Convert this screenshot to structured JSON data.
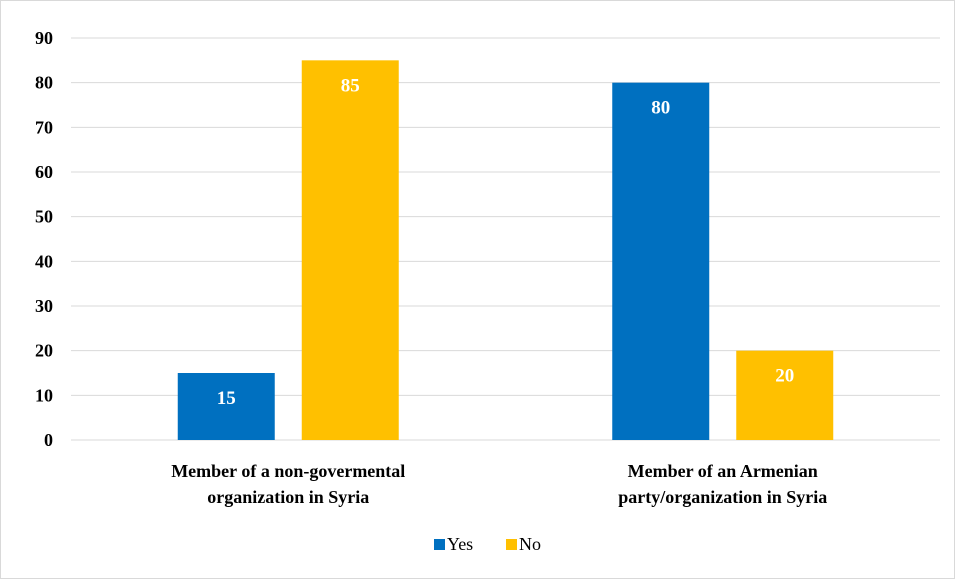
{
  "chart_data": {
    "type": "bar",
    "title": "",
    "xlabel": "",
    "ylabel": "",
    "categories": [
      [
        "Member of a non-govermental",
        "organization in Syria"
      ],
      [
        "Member of an Armenian",
        "party/organization in Syria"
      ]
    ],
    "series": [
      {
        "name": "Yes",
        "color": "#0070c0",
        "values": [
          15,
          80
        ]
      },
      {
        "name": "No",
        "color": "#ffc000",
        "values": [
          85,
          20
        ]
      }
    ],
    "ylim": [
      0,
      90
    ],
    "yticks": [
      0,
      10,
      20,
      30,
      40,
      50,
      60,
      70,
      80,
      90
    ],
    "grid": true,
    "legend_position": "bottom",
    "data_labels": true
  }
}
